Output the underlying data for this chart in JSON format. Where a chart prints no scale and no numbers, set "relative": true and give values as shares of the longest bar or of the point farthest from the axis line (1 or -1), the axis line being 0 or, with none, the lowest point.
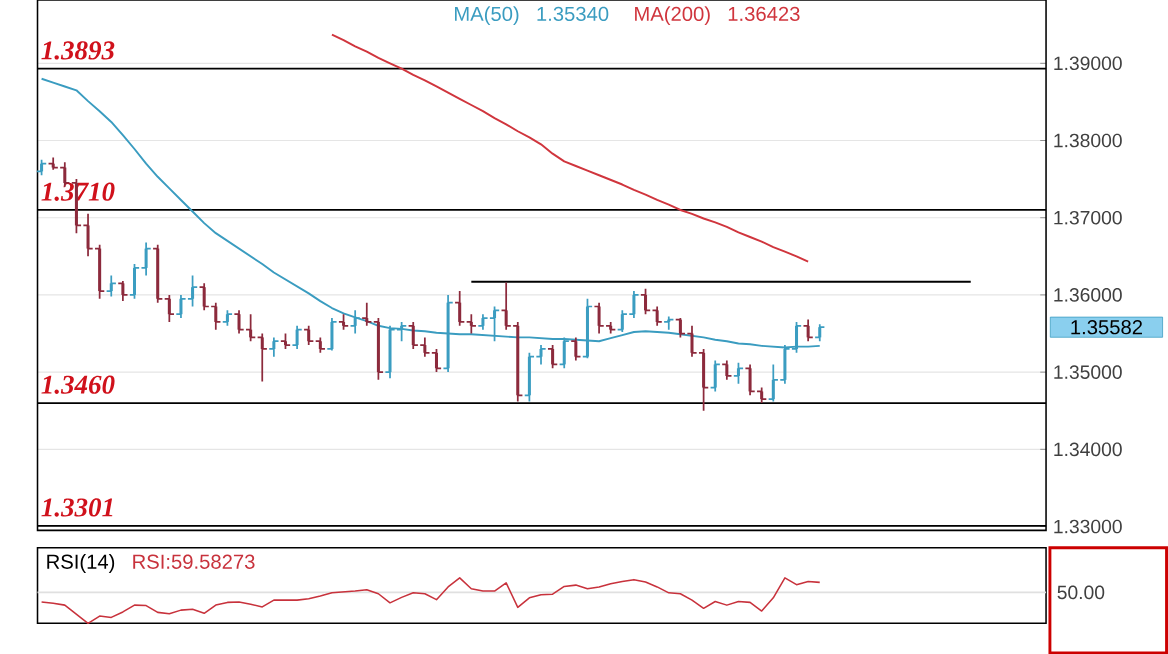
{
  "chart_data": [
    {
      "type": "candlestick",
      "categories": [
        null,
        null,
        null,
        null,
        null,
        null,
        null,
        null,
        null,
        null,
        null,
        null,
        null,
        null,
        null,
        null,
        null,
        null,
        null,
        null,
        null,
        null,
        null,
        null,
        null,
        null,
        null,
        null,
        null,
        null,
        null,
        null,
        null,
        null,
        null,
        null,
        null,
        null,
        null,
        null,
        null,
        null,
        null,
        null,
        null,
        null,
        null,
        null,
        null,
        null,
        null,
        null,
        null,
        null,
        null,
        null,
        null,
        null,
        null,
        null,
        null,
        null,
        null,
        null,
        null,
        null,
        null,
        null,
        null,
        null,
        null,
        null,
        null,
        null,
        null,
        null,
        null,
        null,
        null,
        null,
        null
      ],
      "ohlc": [
        [
          1.376,
          1.3775,
          1.3755,
          1.377
        ],
        [
          1.377,
          1.3778,
          1.3762,
          1.3765
        ],
        [
          1.3765,
          1.3772,
          1.374,
          1.3745
        ],
        [
          1.3745,
          1.375,
          1.368,
          1.369
        ],
        [
          1.369,
          1.3705,
          1.365,
          1.366
        ],
        [
          1.366,
          1.3665,
          1.3595,
          1.3605
        ],
        [
          1.3605,
          1.3625,
          1.3598,
          1.3615
        ],
        [
          1.3615,
          1.3618,
          1.3592,
          1.36
        ],
        [
          1.36,
          1.364,
          1.3595,
          1.3635
        ],
        [
          1.3635,
          1.3668,
          1.3625,
          1.366
        ],
        [
          1.366,
          1.3665,
          1.359,
          1.3595
        ],
        [
          1.3595,
          1.36,
          1.3565,
          1.3575
        ],
        [
          1.3575,
          1.36,
          1.357,
          1.3595
        ],
        [
          1.3595,
          1.3625,
          1.3585,
          1.361
        ],
        [
          1.361,
          1.3615,
          1.358,
          1.3585
        ],
        [
          1.3585,
          1.359,
          1.3555,
          1.3565
        ],
        [
          1.3565,
          1.358,
          1.356,
          1.3575
        ],
        [
          1.3575,
          1.358,
          1.355,
          1.3555
        ],
        [
          1.3555,
          1.3575,
          1.354,
          1.3545
        ],
        [
          1.3545,
          1.355,
          1.3488,
          1.353
        ],
        [
          1.353,
          1.3545,
          1.352,
          1.354
        ],
        [
          1.354,
          1.355,
          1.353,
          1.3535
        ],
        [
          1.3535,
          1.356,
          1.353,
          1.3555
        ],
        [
          1.3555,
          1.356,
          1.3535,
          1.354
        ],
        [
          1.354,
          1.3545,
          1.3525,
          1.353
        ],
        [
          1.353,
          1.357,
          1.3528,
          1.3565
        ],
        [
          1.3565,
          1.3575,
          1.3555,
          1.356
        ],
        [
          1.356,
          1.358,
          1.355,
          1.357
        ],
        [
          1.357,
          1.359,
          1.356,
          1.3565
        ],
        [
          1.3565,
          1.357,
          1.349,
          1.35
        ],
        [
          1.35,
          1.356,
          1.3492,
          1.3555
        ],
        [
          1.3555,
          1.3565,
          1.354,
          1.356
        ],
        [
          1.356,
          1.3565,
          1.353,
          1.3535
        ],
        [
          1.3535,
          1.3545,
          1.352,
          1.3525
        ],
        [
          1.3525,
          1.353,
          1.35,
          1.3505
        ],
        [
          1.3505,
          1.36,
          1.35,
          1.359
        ],
        [
          1.359,
          1.3605,
          1.356,
          1.3565
        ],
        [
          1.3565,
          1.3575,
          1.355,
          1.356
        ],
        [
          1.356,
          1.3575,
          1.3555,
          1.357
        ],
        [
          1.357,
          1.3585,
          1.354,
          1.358
        ],
        [
          1.358,
          1.3616,
          1.3555,
          1.356
        ],
        [
          1.356,
          1.3565,
          1.3462,
          1.347
        ],
        [
          1.347,
          1.3525,
          1.3462,
          1.352
        ],
        [
          1.352,
          1.3535,
          1.351,
          1.353
        ],
        [
          1.353,
          1.3535,
          1.3505,
          1.351
        ],
        [
          1.351,
          1.3545,
          1.3505,
          1.354
        ],
        [
          1.354,
          1.3545,
          1.3515,
          1.352
        ],
        [
          1.352,
          1.3595,
          1.3518,
          1.3585
        ],
        [
          1.3585,
          1.359,
          1.355,
          1.356
        ],
        [
          1.356,
          1.3565,
          1.355,
          1.3555
        ],
        [
          1.3555,
          1.358,
          1.3552,
          1.3575
        ],
        [
          1.3575,
          1.3605,
          1.357,
          1.36
        ],
        [
          1.36,
          1.3608,
          1.3575,
          1.358
        ],
        [
          1.358,
          1.3585,
          1.356,
          1.3565
        ],
        [
          1.3565,
          1.3572,
          1.3555,
          1.3568
        ],
        [
          1.3568,
          1.357,
          1.3545,
          1.355
        ],
        [
          1.355,
          1.356,
          1.352,
          1.3525
        ],
        [
          1.3525,
          1.353,
          1.345,
          1.348
        ],
        [
          1.348,
          1.3515,
          1.3475,
          1.351
        ],
        [
          1.351,
          1.3515,
          1.349,
          1.3495
        ],
        [
          1.3495,
          1.3512,
          1.3485,
          1.3505
        ],
        [
          1.3505,
          1.351,
          1.347,
          1.3475
        ],
        [
          1.3475,
          1.348,
          1.346,
          1.3465
        ],
        [
          1.3465,
          1.351,
          1.3462,
          1.349
        ],
        [
          1.349,
          1.3535,
          1.3485,
          1.353
        ],
        [
          1.353,
          1.3565,
          1.3525,
          1.356
        ],
        [
          1.356,
          1.3568,
          1.354,
          1.3545
        ],
        [
          1.3545,
          1.3562,
          1.354,
          1.35582
        ],
        null,
        null,
        null,
        null,
        null,
        null,
        null,
        null,
        null,
        null,
        null,
        null,
        null
      ],
      "colors": [
        "#3b9dc1",
        "#8c2a3c",
        "#8c2a3c",
        "#8c2a3c",
        "#8c2a3c",
        "#8c2a3c",
        "#3b9dc1",
        "#8c2a3c",
        "#3b9dc1",
        "#3b9dc1",
        "#8c2a3c",
        "#8c2a3c",
        "#3b9dc1",
        "#3b9dc1",
        "#8c2a3c",
        "#8c2a3c",
        "#3b9dc1",
        "#8c2a3c",
        "#8c2a3c",
        "#8c2a3c",
        "#3b9dc1",
        "#8c2a3c",
        "#3b9dc1",
        "#8c2a3c",
        "#8c2a3c",
        "#3b9dc1",
        "#8c2a3c",
        "#3b9dc1",
        "#8c2a3c",
        "#8c2a3c",
        "#3b9dc1",
        "#3b9dc1",
        "#8c2a3c",
        "#8c2a3c",
        "#8c2a3c",
        "#3b9dc1",
        "#8c2a3c",
        "#8c2a3c",
        "#3b9dc1",
        "#3b9dc1",
        "#8c2a3c",
        "#8c2a3c",
        "#3b9dc1",
        "#3b9dc1",
        "#8c2a3c",
        "#3b9dc1",
        "#8c2a3c",
        "#3b9dc1",
        "#8c2a3c",
        "#8c2a3c",
        "#3b9dc1",
        "#3b9dc1",
        "#8c2a3c",
        "#8c2a3c",
        "#3b9dc1",
        "#8c2a3c",
        "#8c2a3c",
        "#8c2a3c",
        "#3b9dc1",
        "#8c2a3c",
        "#3b9dc1",
        "#8c2a3c",
        "#8c2a3c",
        "#3b9dc1",
        "#3b9dc1",
        "#3b9dc1",
        "#8c2a3c",
        "#3b9dc1",
        null,
        null,
        null,
        null,
        null,
        null,
        null,
        null,
        null,
        null,
        null,
        null,
        null
      ],
      "series": [
        {
          "name": "MA(50)",
          "type": "line",
          "color": "#3a9cc0",
          "values": [
            1.388,
            1.3875,
            1.387,
            1.3865,
            1.3851,
            1.3838,
            1.3824,
            1.3807,
            1.3789,
            1.377,
            1.3753,
            1.3738,
            1.3723,
            1.3708,
            1.3693,
            1.368,
            1.367,
            1.366,
            1.365,
            1.364,
            1.3629,
            1.362,
            1.3611,
            1.3602,
            1.3592,
            1.3583,
            1.3576,
            1.3571,
            1.3566,
            1.356,
            1.3557,
            1.3556,
            1.3554,
            1.3553,
            1.3551,
            1.355,
            1.3549,
            1.3549,
            1.3548,
            1.3547,
            1.3546,
            1.3545,
            1.3545,
            1.3544,
            1.3543,
            1.3543,
            1.3542,
            1.3541,
            1.354,
            1.3544,
            1.3548,
            1.3552,
            1.3553,
            1.3552,
            1.3551,
            1.3549,
            1.3547,
            1.3545,
            1.3542,
            1.354,
            1.3537,
            1.3536,
            1.3534,
            1.3533,
            1.3532,
            1.3533,
            1.3533,
            1.3534,
            null,
            null,
            null,
            null,
            null,
            null,
            null,
            null,
            null,
            null,
            null,
            null,
            null
          ]
        },
        {
          "name": "MA(200)",
          "type": "line",
          "color": "#d0353d",
          "values": [
            null,
            null,
            null,
            null,
            null,
            null,
            null,
            null,
            null,
            null,
            null,
            null,
            null,
            null,
            null,
            null,
            null,
            null,
            null,
            null,
            null,
            null,
            null,
            null,
            null,
            1.3937,
            1.393,
            1.3922,
            1.3915,
            1.3907,
            1.39,
            1.3893,
            1.3885,
            1.3878,
            1.387,
            1.3862,
            1.3854,
            1.3846,
            1.3838,
            1.3829,
            1.3821,
            1.3812,
            1.3804,
            1.3795,
            1.3783,
            1.3773,
            1.3767,
            1.3761,
            1.3755,
            1.3749,
            1.3743,
            1.3736,
            1.373,
            1.3723,
            1.3717,
            1.371,
            1.3705,
            1.3699,
            1.3694,
            1.3688,
            1.3681,
            1.3675,
            1.3669,
            1.3662,
            1.3656,
            1.365,
            1.3643,
            null,
            null,
            null,
            null,
            null,
            null,
            null,
            null,
            null,
            null,
            null,
            null,
            null,
            null
          ]
        },
        {
          "type": "line",
          "color": "#000000",
          "values": [
            null,
            null,
            null,
            null,
            null,
            null,
            null,
            null,
            null,
            null,
            null,
            null,
            null,
            null,
            null,
            null,
            null,
            null,
            null,
            null,
            null,
            null,
            null,
            null,
            null,
            null,
            null,
            null,
            null,
            null,
            null,
            null,
            null,
            null,
            null,
            null,
            null,
            1.3617,
            1.3617,
            1.3617,
            1.3617,
            1.3617,
            1.3617,
            1.3617,
            1.3617,
            1.3617,
            1.3617,
            1.3617,
            1.3617,
            1.3617,
            1.3617,
            1.3617,
            1.3617,
            1.3617,
            1.3617,
            1.3617,
            1.3617,
            1.3617,
            1.3617,
            1.3617,
            1.3617,
            1.3617,
            1.3617,
            1.3617,
            1.3617,
            1.3617,
            1.3617,
            1.3617,
            1.3617,
            1.3617,
            1.3617,
            1.3617,
            1.3617,
            1.3617,
            1.3617,
            1.3617,
            1.3617,
            1.3617,
            1.3617,
            1.3617,
            1.3617
          ]
        }
      ],
      "ylim": [
        1.3295,
        1.3982
      ],
      "yticks": [
        {
          "value": 1.33,
          "label": "1.33000"
        },
        {
          "value": 1.34,
          "label": "1.34000"
        },
        {
          "value": 1.35,
          "label": "1.35000"
        },
        {
          "value": 1.36,
          "label": "1.36000"
        },
        {
          "value": 1.37,
          "label": "1.37000"
        },
        {
          "value": 1.38,
          "label": "1.38000"
        },
        {
          "value": 1.39,
          "label": "1.39000"
        }
      ],
      "grid": "y",
      "tick_labels": "y",
      "ref_lines": [
        {
          "axis": "y",
          "value": 1.3893,
          "label": "1.3893",
          "color": "#000000"
        },
        {
          "axis": "y",
          "value": 1.371,
          "label": "1.3710",
          "color": "#000000"
        },
        {
          "axis": "y",
          "value": 1.346,
          "label": "1.3460",
          "color": "#000000"
        },
        {
          "axis": "y",
          "value": 1.3301,
          "label": "1.3301",
          "color": "#000000"
        }
      ],
      "annotations": [
        "1.35340",
        "1.36423",
        "1.35582"
      ]
    },
    {
      "type": "line",
      "title": "RSI(14)",
      "color": "#c8323c",
      "relative": true,
      "tick_labels": false,
      "categories": [
        null,
        null,
        null,
        null,
        null,
        null,
        null,
        null,
        null,
        null,
        null,
        null,
        null,
        null,
        null,
        null,
        null,
        null,
        null,
        null,
        null,
        null,
        null,
        null,
        null,
        null,
        null,
        null,
        null,
        null,
        null,
        null,
        null,
        null,
        null,
        null,
        null,
        null,
        null,
        null,
        null,
        null,
        null,
        null,
        null,
        null,
        null,
        null,
        null,
        null,
        null,
        null,
        null,
        null,
        null,
        null,
        null,
        null,
        null,
        null,
        null,
        null,
        null,
        null,
        null,
        null,
        null,
        null
      ],
      "values": [
        0.47,
        0.44,
        0.4,
        0.2,
        0.0,
        0.16,
        0.13,
        0.25,
        0.4,
        0.39,
        0.24,
        0.21,
        0.29,
        0.31,
        0.22,
        0.4,
        0.46,
        0.47,
        0.42,
        0.36,
        0.51,
        0.51,
        0.51,
        0.54,
        0.6,
        0.67,
        0.69,
        0.71,
        0.74,
        0.65,
        0.45,
        0.57,
        0.67,
        0.65,
        0.52,
        0.8,
        1.0,
        0.76,
        0.71,
        0.71,
        0.89,
        0.35,
        0.56,
        0.63,
        0.64,
        0.81,
        0.84,
        0.76,
        0.8,
        0.87,
        0.92,
        0.96,
        0.91,
        0.8,
        0.67,
        0.65,
        0.51,
        0.33,
        0.48,
        0.4,
        0.48,
        0.46,
        0.27,
        0.56,
        1.0,
        0.85,
        0.92,
        0.9
      ],
      "ref_lines": [
        {
          "axis": "y",
          "value": 0.68,
          "color": "#e0e0e0"
        }
      ],
      "annotations": [
        "RSI:59.58273",
        "50.00"
      ]
    }
  ]
}
